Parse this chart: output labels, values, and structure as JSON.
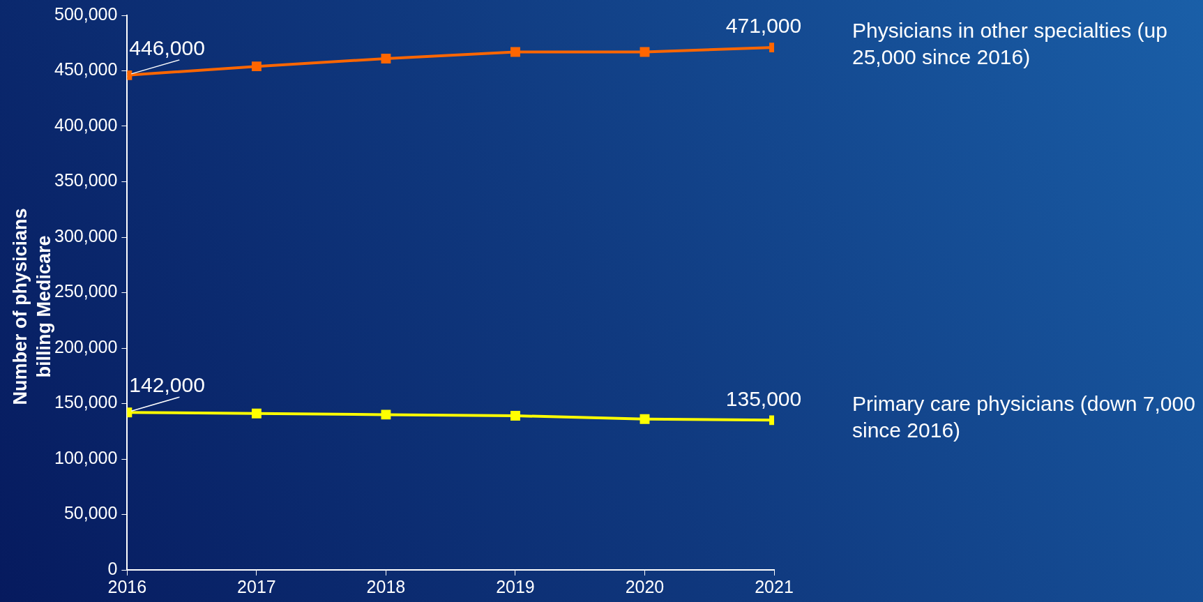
{
  "chart_data": {
    "type": "line",
    "ylabel": "Number of physicians billing Medicare",
    "x": [
      2016,
      2017,
      2018,
      2019,
      2020,
      2021
    ],
    "xlim": [
      2016,
      2021
    ],
    "xticks": [
      2016,
      2017,
      2018,
      2019,
      2020,
      2021
    ],
    "ylim": [
      0,
      500000
    ],
    "yticks": [
      0,
      {
        "value": 50000,
        "label": "50,000"
      },
      {
        "value": 100000,
        "label": "100,000"
      },
      {
        "value": 150000,
        "label": "150,000"
      },
      {
        "value": 200000,
        "label": "200,000"
      },
      {
        "value": 250000,
        "label": "250,000"
      },
      {
        "value": 300000,
        "label": "300,000"
      },
      {
        "value": 350000,
        "label": "350,000"
      },
      {
        "value": 400000,
        "label": "400,000"
      },
      {
        "value": 450000,
        "label": "450,000"
      },
      {
        "value": 500000,
        "label": "500,000"
      }
    ],
    "grid": false,
    "legend": false,
    "marker": "square",
    "line_style": "solid",
    "series": [
      {
        "name": "Physicians in other specialties (up 25,000 since 2016)",
        "color": "#ff6600",
        "values": [
          446000,
          454000,
          461000,
          467000,
          467000,
          471000
        ],
        "value_labels": [
          "446,000",
          null,
          null,
          null,
          null,
          "471,000"
        ]
      },
      {
        "name": "Primary care physicians (down 7,000 since 2016)",
        "color": "#ffff00",
        "values": [
          142000,
          141000,
          140000,
          139000,
          136000,
          135000
        ],
        "value_labels": [
          "142,000",
          null,
          null,
          null,
          null,
          "135,000"
        ]
      }
    ]
  }
}
